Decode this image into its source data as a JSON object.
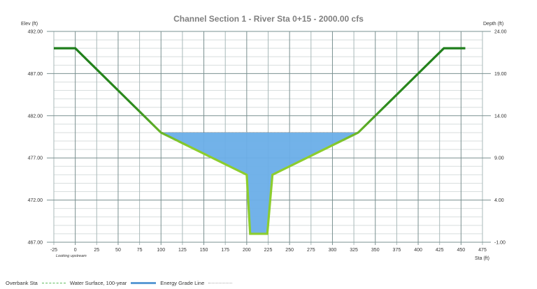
{
  "title": "Channel Section 1 - River Sta 0+15 - 2000.00 cfs",
  "y_left_title": "Elev (ft)",
  "y_right_title": "Depth (ft)",
  "x_title": "Sta (ft)",
  "note": "Looking upstream",
  "legend": [
    {
      "label": "Overbank Sta",
      "style": "dashed",
      "color": "#5cb85c"
    },
    {
      "label": "Water Surface, 100-year",
      "style": "solid",
      "color": "#5b9bd5"
    },
    {
      "label": "Energy Grade Line",
      "style": "dotted",
      "color": "#aaaaaa"
    }
  ],
  "colors": {
    "ground_upper": "#1a7a1a",
    "ground_lower": "#8ccd2e",
    "water_fill": "#6aaee8",
    "grid_major": "#7a9090",
    "grid_minor": "#d8dede"
  },
  "chart_data": {
    "type": "area",
    "title": "Channel Section 1 - River Sta 0+15 - 2000.00 cfs",
    "xlabel": "Sta (ft)",
    "ylabel": "Elev (ft)",
    "y2label": "Depth (ft)",
    "xlim": [
      -25,
      475
    ],
    "ylim": [
      467,
      492
    ],
    "y2lim": [
      -1,
      24
    ],
    "x_ticks": [
      -25,
      0,
      25,
      50,
      75,
      100,
      125,
      150,
      175,
      200,
      225,
      250,
      275,
      300,
      325,
      350,
      375,
      400,
      425,
      450,
      475
    ],
    "y_ticks": [
      "492.00",
      "487.00",
      "482.00",
      "477.00",
      "472.00",
      "467.00"
    ],
    "y2_ticks": [
      "24.00",
      "19.00",
      "14.00",
      "9.00",
      "4.00",
      "-1.00"
    ],
    "grid": true,
    "legend_position": "bottom",
    "series": [
      {
        "name": "Ground",
        "x": [
          -25,
          0,
          100,
          200,
          204,
          224,
          230,
          330,
          430,
          455
        ],
        "y": [
          490,
          490,
          480,
          475,
          468,
          468,
          475,
          480,
          490,
          490
        ]
      },
      {
        "name": "Water Surface, 100-year",
        "elevation": 480.0,
        "x_extent": [
          100,
          330
        ]
      },
      {
        "name": "Energy Grade Line",
        "elevation": 480.05,
        "x_extent": [
          100,
          330
        ]
      },
      {
        "name": "Overbank Sta",
        "x": []
      }
    ]
  }
}
